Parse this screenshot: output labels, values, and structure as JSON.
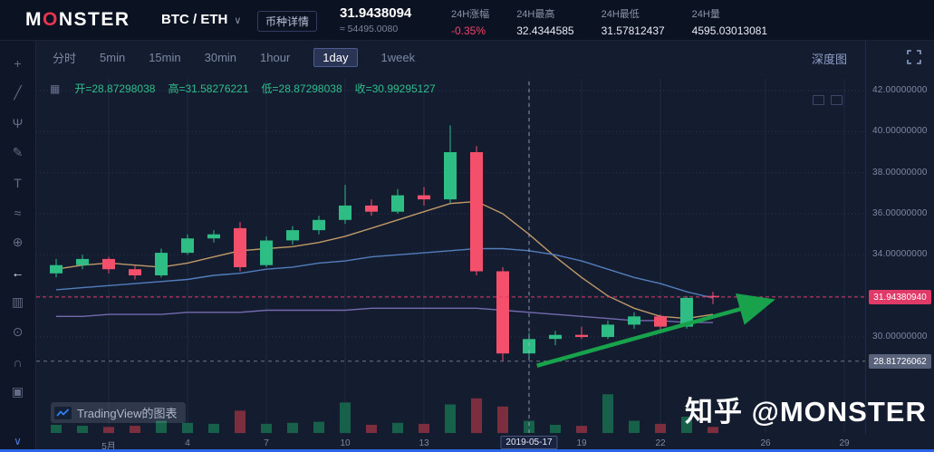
{
  "header": {
    "logo_m": "M",
    "logo_o": "O",
    "logo_rest": "NSTER",
    "pair": "BTC / ETH",
    "caret": "∨",
    "details_button": "币种详情",
    "price": "31.9438094",
    "price_approx": "≈ 54495.0080",
    "stats": [
      {
        "label": "24H涨幅",
        "value": "-0.35%"
      },
      {
        "label": "24H最高",
        "value": "32.4344585"
      },
      {
        "label": "24H最低",
        "value": "31.57812437"
      },
      {
        "label": "24H量",
        "value": "4595.03013081"
      }
    ]
  },
  "toolbar": {
    "intervals": [
      "分时",
      "5min",
      "15min",
      "30min",
      "1hour",
      "1day",
      "1week"
    ],
    "selected_index": 5,
    "depth_label": "深度图"
  },
  "ohlc": {
    "icon_glyph": "▦",
    "items": [
      {
        "k": "开",
        "v": "28.87298038"
      },
      {
        "k": "高",
        "v": "31.58276221"
      },
      {
        "k": "低",
        "v": "28.87298038"
      },
      {
        "k": "收",
        "v": "30.99295127"
      }
    ]
  },
  "side_tools": [
    {
      "name": "crosshair-tool",
      "glyph": "+"
    },
    {
      "name": "trend-line-tool",
      "glyph": "╱"
    },
    {
      "name": "pitchfork-tool",
      "glyph": "Ψ"
    },
    {
      "name": "brush-tool",
      "glyph": "✎"
    },
    {
      "name": "text-tool",
      "glyph": "T"
    },
    {
      "name": "pattern-tool",
      "glyph": "≈"
    },
    {
      "name": "position-tool",
      "glyph": "⊕"
    },
    {
      "name": "back-arrow-tool",
      "glyph": "←",
      "active": true
    },
    {
      "name": "compare-tool",
      "glyph": "▥"
    },
    {
      "name": "zoom-tool",
      "glyph": "⊙"
    },
    {
      "name": "magnet-tool",
      "glyph": "∩"
    },
    {
      "name": "lock-tool",
      "glyph": "▣"
    }
  ],
  "rail_collapse_glyph": "∨",
  "watermark": {
    "tradingview": "TradingView的图表",
    "zhihu": "知乎 @MONSTER"
  },
  "colors": {
    "up": "#2ebd85",
    "down": "#f4506c",
    "vol_up": "#17614b",
    "vol_down": "#7c2d3e",
    "accent_pink": "#e03a68",
    "arrow": "#18a24b",
    "ma1": "#c8a06a",
    "ma2": "#5584c4",
    "ma3": "#7a6fb5",
    "axis_text": "#7e88a3"
  },
  "chart_data": {
    "type": "candlestick",
    "pair": "BTC/ETH",
    "interval": "1day",
    "x_unit": "day of May 2019 (day 1 = 5月1日; negative = end of April)",
    "ylim": [
      28.2,
      42.5
    ],
    "y_ticks": [
      {
        "v": 42,
        "label": "42.00000000"
      },
      {
        "v": 40,
        "label": "40.00000000"
      },
      {
        "v": 38,
        "label": "38.00000000"
      },
      {
        "v": 36,
        "label": "36.00000000"
      },
      {
        "v": 34,
        "label": "34.00000000"
      },
      {
        "v": 30,
        "label": "30.00000000"
      }
    ],
    "y_grid": [
      42,
      40,
      38,
      36,
      34,
      32,
      30
    ],
    "x_ticks": [
      {
        "day": 1,
        "label": "5月"
      },
      {
        "day": 4,
        "label": "4"
      },
      {
        "day": 7,
        "label": "7"
      },
      {
        "day": 10,
        "label": "10"
      },
      {
        "day": 13,
        "label": "13"
      },
      {
        "day": 17,
        "label": "2019-05-17",
        "boxed": true
      },
      {
        "day": 19,
        "label": "19"
      },
      {
        "day": 22,
        "label": "22"
      },
      {
        "day": 26,
        "label": "26"
      },
      {
        "day": 29,
        "label": "29"
      }
    ],
    "first_candle_day": -1,
    "candles": [
      [
        33.1,
        33.8,
        32.9,
        33.5
      ],
      [
        33.5,
        34.0,
        33.3,
        33.8
      ],
      [
        33.8,
        33.9,
        33.1,
        33.3
      ],
      [
        33.3,
        33.5,
        32.8,
        33.0
      ],
      [
        33.0,
        34.3,
        32.9,
        34.1
      ],
      [
        34.1,
        35.0,
        34.0,
        34.8
      ],
      [
        34.8,
        35.2,
        34.6,
        35.0
      ],
      [
        35.3,
        35.6,
        33.2,
        33.4
      ],
      [
        33.5,
        34.9,
        33.4,
        34.7
      ],
      [
        34.7,
        35.4,
        34.5,
        35.2
      ],
      [
        35.2,
        35.9,
        35.0,
        35.7
      ],
      [
        35.7,
        37.4,
        35.5,
        36.4
      ],
      [
        36.4,
        36.7,
        35.9,
        36.1
      ],
      [
        36.1,
        37.2,
        36.0,
        36.9
      ],
      [
        36.9,
        37.3,
        36.4,
        36.7
      ],
      [
        36.7,
        40.3,
        36.5,
        39.0
      ],
      [
        39.0,
        39.3,
        33.0,
        33.2
      ],
      [
        33.2,
        33.4,
        28.82,
        29.2
      ],
      [
        29.2,
        30.2,
        29.0,
        29.9
      ],
      [
        29.9,
        30.3,
        29.6,
        30.1
      ],
      [
        30.1,
        30.5,
        29.9,
        30.0
      ],
      [
        30.0,
        30.8,
        29.9,
        30.6
      ],
      [
        30.6,
        31.2,
        30.4,
        31.0
      ],
      [
        31.0,
        31.1,
        30.3,
        30.5
      ],
      [
        30.5,
        32.0,
        30.4,
        31.9
      ],
      [
        32.0,
        32.2,
        31.6,
        31.94
      ]
    ],
    "volumes": [
      8,
      7,
      6,
      7,
      12,
      10,
      9,
      22,
      9,
      10,
      11,
      30,
      8,
      10,
      9,
      28,
      34,
      26,
      12,
      8,
      7,
      38,
      12,
      9,
      16,
      6
    ],
    "ma_lines": [
      {
        "name": "ma1",
        "color_key": "ma1",
        "values": [
          33.3,
          33.5,
          33.6,
          33.5,
          33.4,
          33.6,
          33.9,
          34.2,
          34.3,
          34.4,
          34.6,
          34.9,
          35.3,
          35.7,
          36.1,
          36.5,
          36.6,
          36.0,
          35.0,
          33.9,
          32.9,
          32.0,
          31.4,
          31.0,
          30.9,
          31.1
        ]
      },
      {
        "name": "ma2",
        "color_key": "ma2",
        "values": [
          32.3,
          32.4,
          32.5,
          32.6,
          32.7,
          32.8,
          33.0,
          33.1,
          33.3,
          33.4,
          33.6,
          33.7,
          33.9,
          34.0,
          34.1,
          34.2,
          34.3,
          34.3,
          34.2,
          34.0,
          33.7,
          33.3,
          32.9,
          32.6,
          32.2,
          31.9
        ]
      },
      {
        "name": "ma3",
        "color_key": "ma3",
        "values": [
          31.0,
          31.0,
          31.1,
          31.1,
          31.1,
          31.2,
          31.2,
          31.2,
          31.3,
          31.3,
          31.3,
          31.3,
          31.4,
          31.4,
          31.4,
          31.4,
          31.4,
          31.3,
          31.2,
          31.1,
          31.0,
          30.9,
          30.8,
          30.8,
          30.7,
          30.7
        ]
      }
    ],
    "price_line": {
      "value": 31.9438094,
      "label": "31.94380940"
    },
    "low_line": {
      "value": 28.81726062,
      "label": "28.81726062"
    },
    "event_line_day": 17,
    "trend_arrow": {
      "from_day": 17.3,
      "from_price": 28.6,
      "to_day": 26.0,
      "to_price": 31.7
    }
  }
}
